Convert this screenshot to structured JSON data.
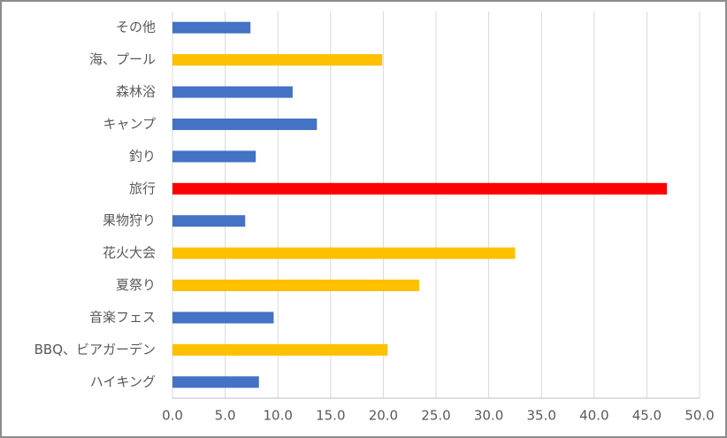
{
  "chart_data": {
    "type": "barh",
    "categories": [
      "その他",
      "海、プール",
      "森林浴",
      "キャンプ",
      "釣り",
      "旅行",
      "果物狩り",
      "花火大会",
      "夏祭り",
      "音楽フェス",
      "BBQ、ビアガーデン",
      "ハイキング"
    ],
    "values": [
      7.4,
      19.9,
      11.4,
      13.7,
      7.9,
      46.9,
      6.9,
      32.5,
      23.4,
      9.6,
      20.4,
      8.2
    ],
    "colors": [
      "#4472c4",
      "#ffc000",
      "#4472c4",
      "#4472c4",
      "#4472c4",
      "#ff0000",
      "#4472c4",
      "#ffc000",
      "#ffc000",
      "#4472c4",
      "#ffc000",
      "#4472c4"
    ],
    "xlim": [
      0,
      50
    ],
    "xticks": [
      {
        "value": 0,
        "label": "0.0"
      },
      {
        "value": 5,
        "label": "5.0"
      },
      {
        "value": 10,
        "label": "10.0"
      },
      {
        "value": 15,
        "label": "15.0"
      },
      {
        "value": 20,
        "label": "20.0"
      },
      {
        "value": 25,
        "label": "25.0"
      },
      {
        "value": 30,
        "label": "30.0"
      },
      {
        "value": 35,
        "label": "35.0"
      },
      {
        "value": 40,
        "label": "40.0"
      },
      {
        "value": 45,
        "label": "45.0"
      },
      {
        "value": 50,
        "label": "50.0"
      }
    ],
    "grid": true
  }
}
